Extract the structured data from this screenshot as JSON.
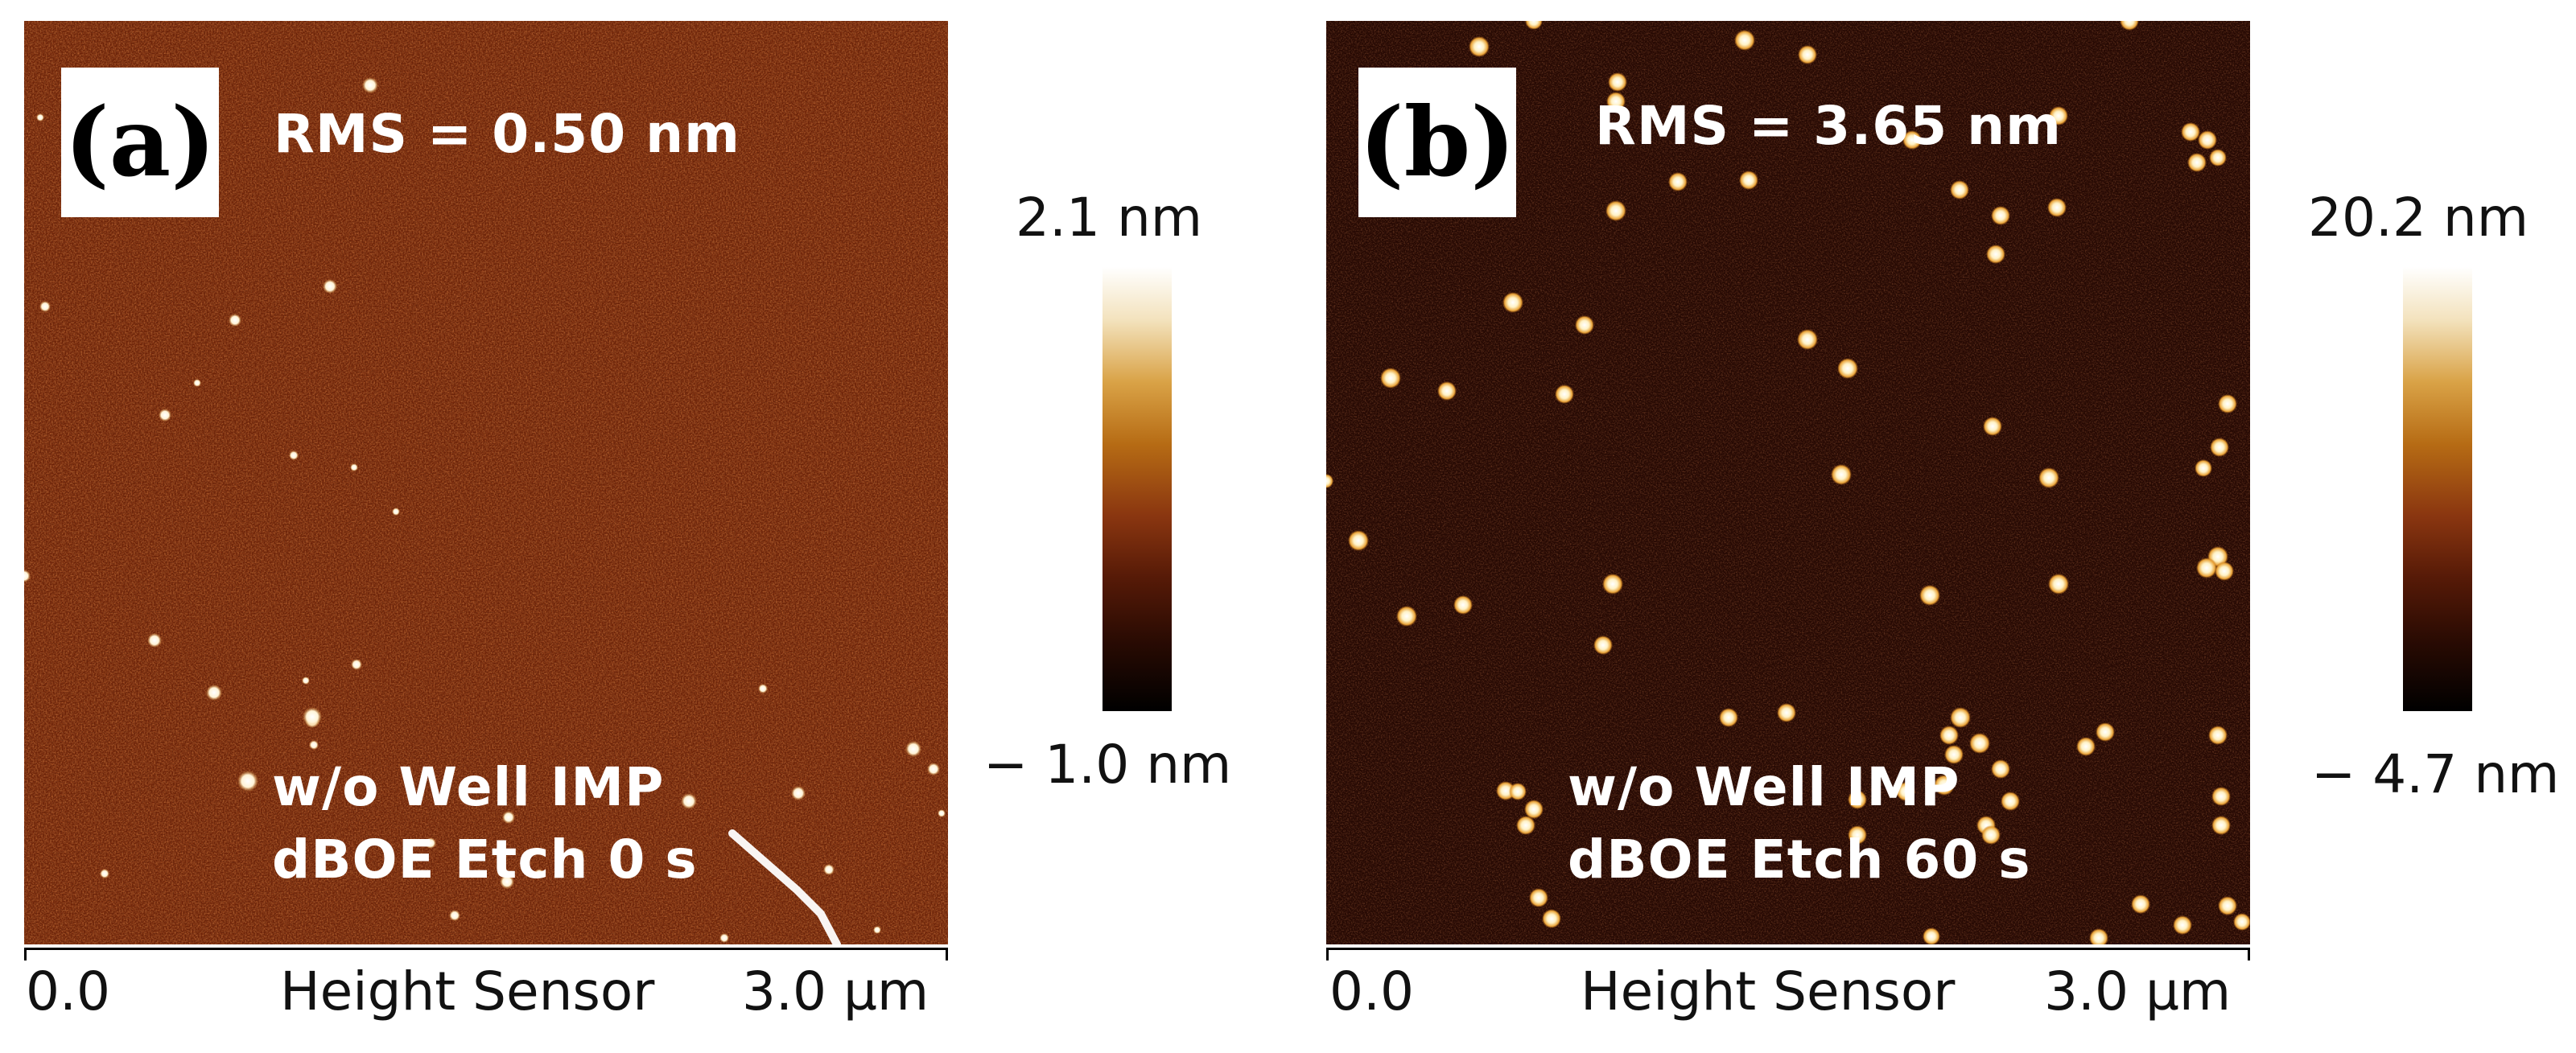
{
  "panels": [
    {
      "label": "(a)",
      "rms": "RMS = 0.50 nm",
      "condition_line1": "w/o Well IMP",
      "condition_line2": "dBOE Etch 0 s",
      "axis": {
        "start": "0.0",
        "title": "Height Sensor",
        "end": "3.0 µm"
      },
      "colorbar": {
        "max": "2.1 nm",
        "min": "− 1.0 nm"
      }
    },
    {
      "label": "(b)",
      "rms": "RMS = 3.65 nm",
      "condition_line1": "w/o Well IMP",
      "condition_line2": "dBOE Etch 60 s",
      "axis": {
        "start": "0.0",
        "title": "Height Sensor",
        "end": "3.0 µm"
      },
      "colorbar": {
        "max": "20.2 nm",
        "min": "− 4.7 nm"
      }
    }
  ],
  "colors": {
    "background_a": "#7a2608",
    "background_b": "#2b0a04",
    "particle": "#ffffff",
    "particle_glow": "#f2c15a"
  }
}
